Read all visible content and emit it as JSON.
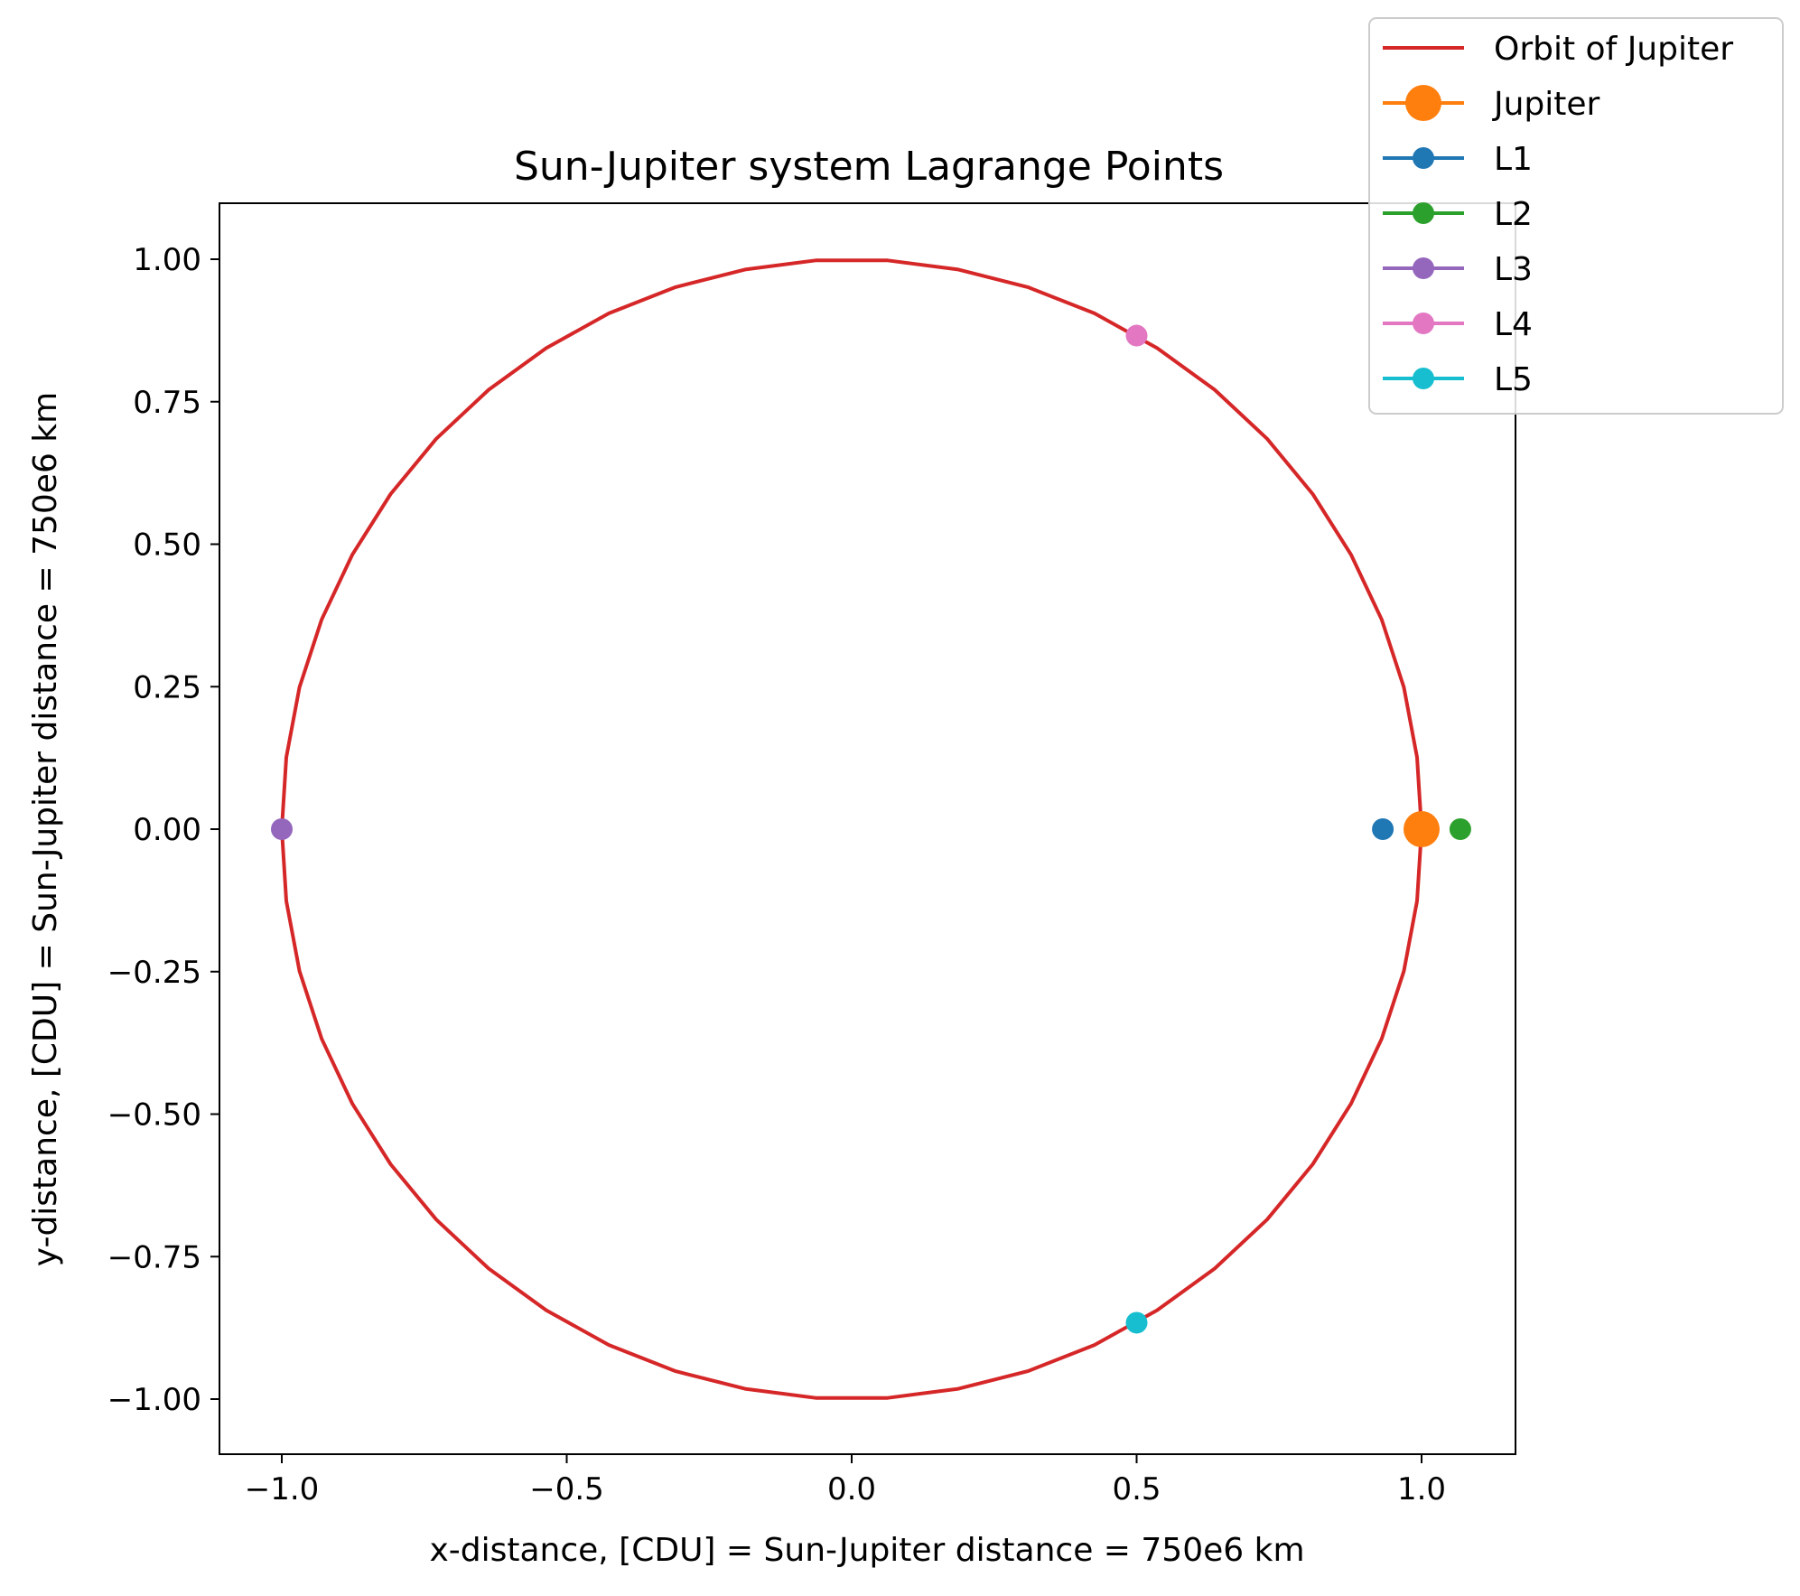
{
  "chart_data": {
    "type": "line",
    "title": "Sun-Jupiter system Lagrange Points",
    "xlabel": "x-distance, [CDU] = Sun-Jupiter distance = 750e6 km",
    "ylabel": "y-distance, [CDU] = Sun-Jupiter distance = 750e6 km",
    "xlim": [
      -1.1,
      1.17
    ],
    "ylim": [
      -1.1,
      1.1
    ],
    "x_ticks": [
      -1.0,
      -0.5,
      0.0,
      0.5,
      1.0
    ],
    "x_tick_labels": [
      "−1.0",
      "−0.5",
      "0.0",
      "0.5",
      "1.0"
    ],
    "y_ticks": [
      1.0,
      0.75,
      0.5,
      0.25,
      0.0,
      -0.25,
      -0.5,
      -0.75,
      -1.0
    ],
    "y_tick_labels": [
      "1.00",
      "0.75",
      "0.50",
      "0.25",
      "0.00",
      "−0.25",
      "−0.50",
      "−0.75",
      "−1.00"
    ],
    "grid": false,
    "legend_position": "upper-right (outside axes)",
    "orbit": {
      "name": "Orbit of Jupiter",
      "color": "#d62728",
      "center": [
        0,
        0
      ],
      "radius": 1.0,
      "points": [
        [
          1.0,
          0.0
        ],
        [
          0.992,
          0.126
        ],
        [
          0.969,
          0.249
        ],
        [
          0.93,
          0.368
        ],
        [
          0.876,
          0.482
        ],
        [
          0.809,
          0.588
        ],
        [
          0.729,
          0.685
        ],
        [
          0.637,
          0.771
        ],
        [
          0.536,
          0.844
        ],
        [
          0.426,
          0.905
        ],
        [
          0.309,
          0.951
        ],
        [
          0.187,
          0.982
        ],
        [
          0.063,
          0.998
        ],
        [
          -0.063,
          0.998
        ],
        [
          -0.187,
          0.982
        ],
        [
          -0.309,
          0.951
        ],
        [
          -0.426,
          0.905
        ],
        [
          -0.536,
          0.844
        ],
        [
          -0.637,
          0.771
        ],
        [
          -0.729,
          0.685
        ],
        [
          -0.809,
          0.588
        ],
        [
          -0.876,
          0.482
        ],
        [
          -0.93,
          0.368
        ],
        [
          -0.969,
          0.249
        ],
        [
          -0.992,
          0.126
        ],
        [
          -1.0,
          0.0
        ],
        [
          -0.992,
          -0.126
        ],
        [
          -0.969,
          -0.249
        ],
        [
          -0.93,
          -0.368
        ],
        [
          -0.876,
          -0.482
        ],
        [
          -0.809,
          -0.588
        ],
        [
          -0.729,
          -0.685
        ],
        [
          -0.637,
          -0.771
        ],
        [
          -0.536,
          -0.844
        ],
        [
          -0.426,
          -0.905
        ],
        [
          -0.309,
          -0.951
        ],
        [
          -0.187,
          -0.982
        ],
        [
          -0.063,
          -0.998
        ],
        [
          0.063,
          -0.998
        ],
        [
          0.187,
          -0.982
        ],
        [
          0.309,
          -0.951
        ],
        [
          0.426,
          -0.905
        ],
        [
          0.536,
          -0.844
        ],
        [
          0.637,
          -0.771
        ],
        [
          0.729,
          -0.685
        ],
        [
          0.809,
          -0.588
        ],
        [
          0.876,
          -0.482
        ],
        [
          0.93,
          -0.368
        ],
        [
          0.969,
          -0.249
        ],
        [
          0.992,
          -0.126
        ],
        [
          1.0,
          0.0
        ]
      ]
    },
    "series": [
      {
        "name": "Jupiter",
        "color": "#ff7f0e",
        "x": 1.0,
        "y": 0.0,
        "marker": "large-circle"
      },
      {
        "name": "L1",
        "color": "#1f77b4",
        "x": 0.932,
        "y": 0.0,
        "marker": "circle"
      },
      {
        "name": "L2",
        "color": "#2ca02c",
        "x": 1.068,
        "y": 0.0,
        "marker": "circle"
      },
      {
        "name": "L3",
        "color": "#9467bd",
        "x": -1.0,
        "y": 0.0,
        "marker": "circle"
      },
      {
        "name": "L4",
        "color": "#e377c2",
        "x": 0.5,
        "y": 0.866,
        "marker": "circle"
      },
      {
        "name": "L5",
        "color": "#17becf",
        "x": 0.5,
        "y": -0.866,
        "marker": "circle"
      }
    ]
  }
}
